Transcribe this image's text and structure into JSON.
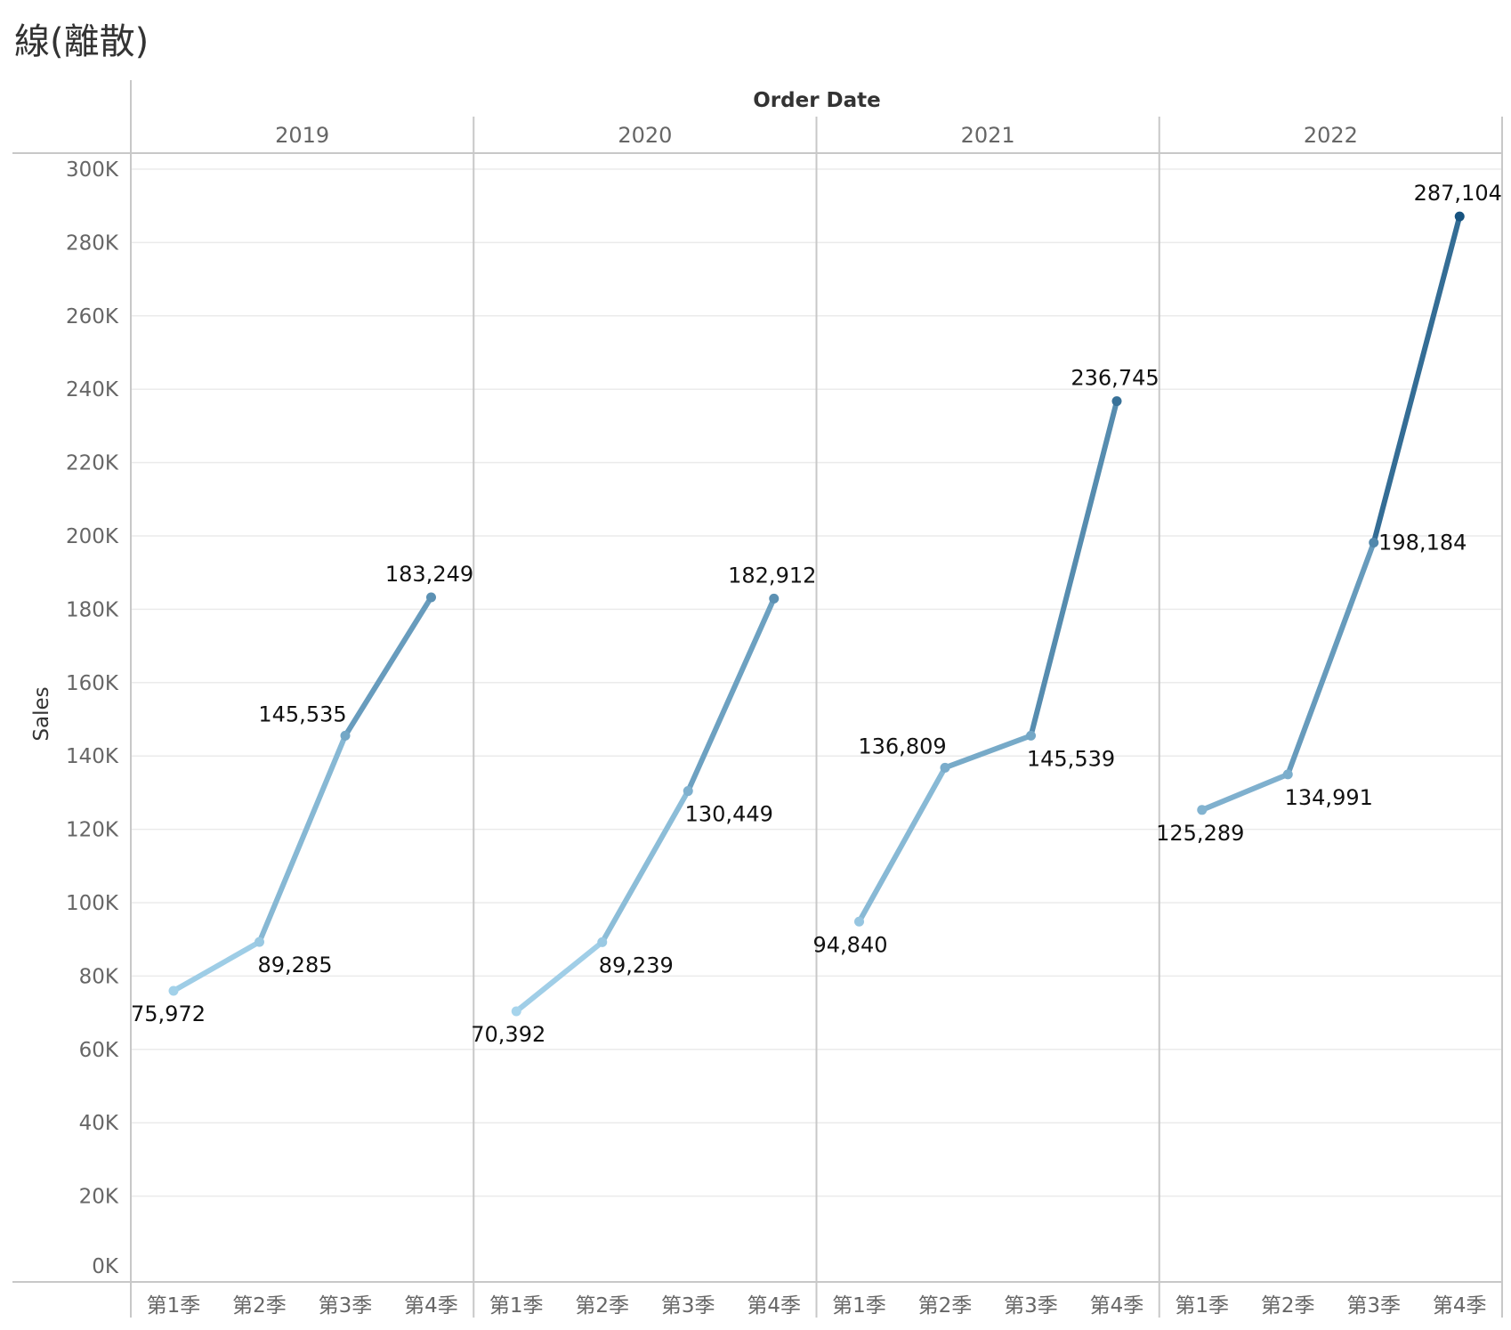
{
  "title": "線(離散)",
  "column_header": "Order Date",
  "colors": {
    "series_light": "#a6d4ec",
    "series_dark": "#17537f",
    "grid": "#ebebeb",
    "frame": "#c8c8c8"
  },
  "chart_data": {
    "type": "line",
    "title": "線(離散)",
    "xlabel": "Order Date",
    "ylabel": "Sales",
    "ylim": [
      0,
      300000
    ],
    "yticks": [
      0,
      20000,
      40000,
      60000,
      80000,
      100000,
      120000,
      140000,
      160000,
      180000,
      200000,
      220000,
      240000,
      260000,
      280000,
      300000
    ],
    "ytick_labels": [
      "0K",
      "20K",
      "40K",
      "60K",
      "80K",
      "100K",
      "120K",
      "140K",
      "160K",
      "180K",
      "200K",
      "220K",
      "240K",
      "260K",
      "280K",
      "300K"
    ],
    "grid": true,
    "categories": [
      "第1季",
      "第2季",
      "第3季",
      "第4季"
    ],
    "panels": [
      {
        "year": "2019",
        "values": [
          75972,
          89285,
          145535,
          183249
        ],
        "labels": [
          "75,972",
          "89,285",
          "145,535",
          "183,249"
        ]
      },
      {
        "year": "2020",
        "values": [
          70392,
          89239,
          130449,
          182912
        ],
        "labels": [
          "70,392",
          "89,239",
          "130,449",
          "182,912"
        ]
      },
      {
        "year": "2021",
        "values": [
          94840,
          136809,
          145539,
          236745
        ],
        "labels": [
          "94,840",
          "136,809",
          "145,539",
          "236,745"
        ]
      },
      {
        "year": "2022",
        "values": [
          125289,
          134991,
          198184,
          287104
        ],
        "labels": [
          "125,289",
          "134,991",
          "198,184",
          "287,104"
        ]
      }
    ]
  }
}
